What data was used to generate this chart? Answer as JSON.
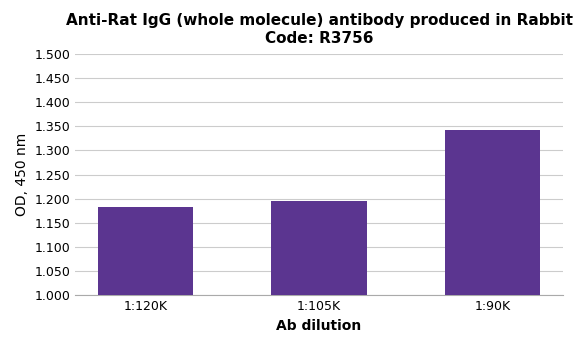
{
  "title_line1": "Anti-Rat IgG (whole molecule) antibody produced in Rabbit",
  "title_line2": "Code: R3756",
  "categories": [
    "1:120K",
    "1:105K",
    "1:90K"
  ],
  "values": [
    1.183,
    1.195,
    1.342
  ],
  "bar_color": "#5b3590",
  "xlabel": "Ab dilution",
  "ylabel": "OD, 450 nm",
  "ylim": [
    1.0,
    1.5
  ],
  "yticks": [
    1.0,
    1.05,
    1.1,
    1.15,
    1.2,
    1.25,
    1.3,
    1.35,
    1.4,
    1.45,
    1.5
  ],
  "title_fontsize": 11,
  "axis_label_fontsize": 10,
  "tick_fontsize": 9,
  "bar_width": 0.55,
  "background_color": "#ffffff",
  "grid_color": "#cccccc"
}
